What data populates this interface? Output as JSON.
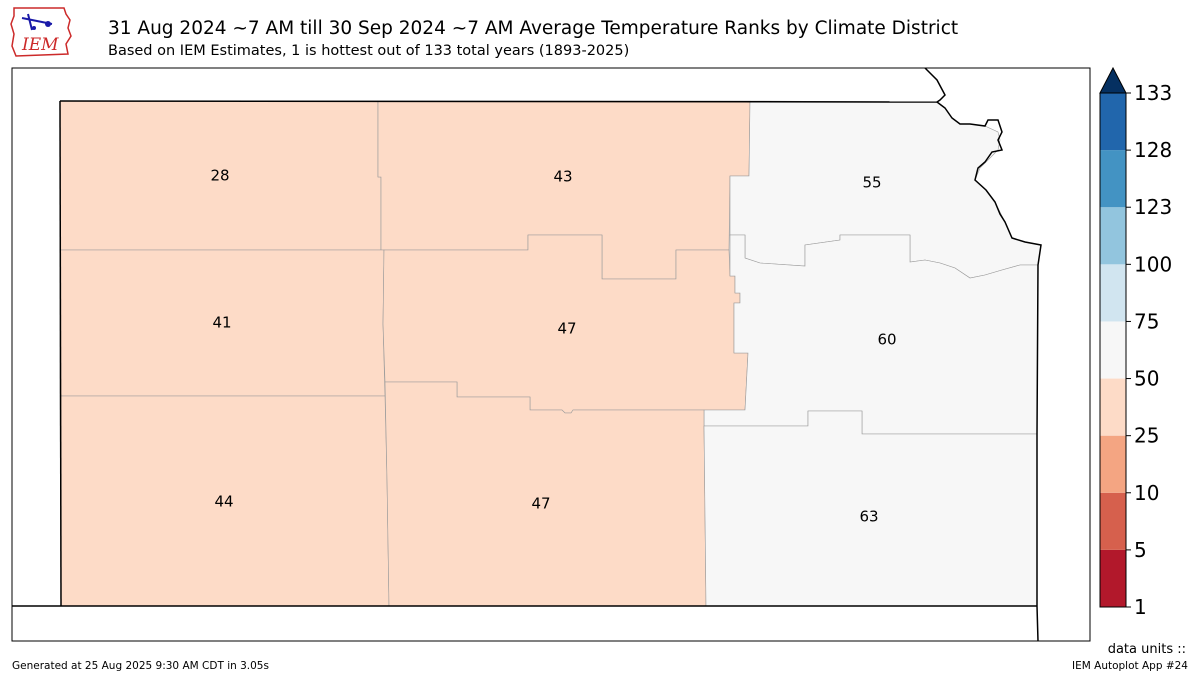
{
  "title": "31 Aug 2024 ~7 AM till 30 Sep 2024 ~7 AM Average Temperature Ranks by Climate District",
  "subtitle": "Based on IEM Estimates, 1 is hottest out of 133 total years (1893-2025)",
  "logo": {
    "text": "IEM"
  },
  "footer": {
    "generated": "Generated at 25 Aug 2025 9:30 AM CDT in 3.05s",
    "app": "IEM Autoplot App #24",
    "units": "data units ::"
  },
  "colorbar": {
    "levels": [
      "1",
      "5",
      "10",
      "25",
      "50",
      "75",
      "100",
      "123",
      "128",
      "133"
    ],
    "colors": [
      "#b2182b",
      "#d6604d",
      "#f4a582",
      "#fddbc7",
      "#f7f7f7",
      "#d1e5f0",
      "#92c5de",
      "#4393c3",
      "#2166ac"
    ],
    "extend_color": "#053061"
  },
  "districts": [
    {
      "id": "nw",
      "rank": "28"
    },
    {
      "id": "nc",
      "rank": "43"
    },
    {
      "id": "ne",
      "rank": "55"
    },
    {
      "id": "wc",
      "rank": "41"
    },
    {
      "id": "c",
      "rank": "47"
    },
    {
      "id": "ec",
      "rank": "60"
    },
    {
      "id": "sw",
      "rank": "44"
    },
    {
      "id": "sc",
      "rank": "47"
    },
    {
      "id": "se",
      "rank": "63"
    }
  ]
}
